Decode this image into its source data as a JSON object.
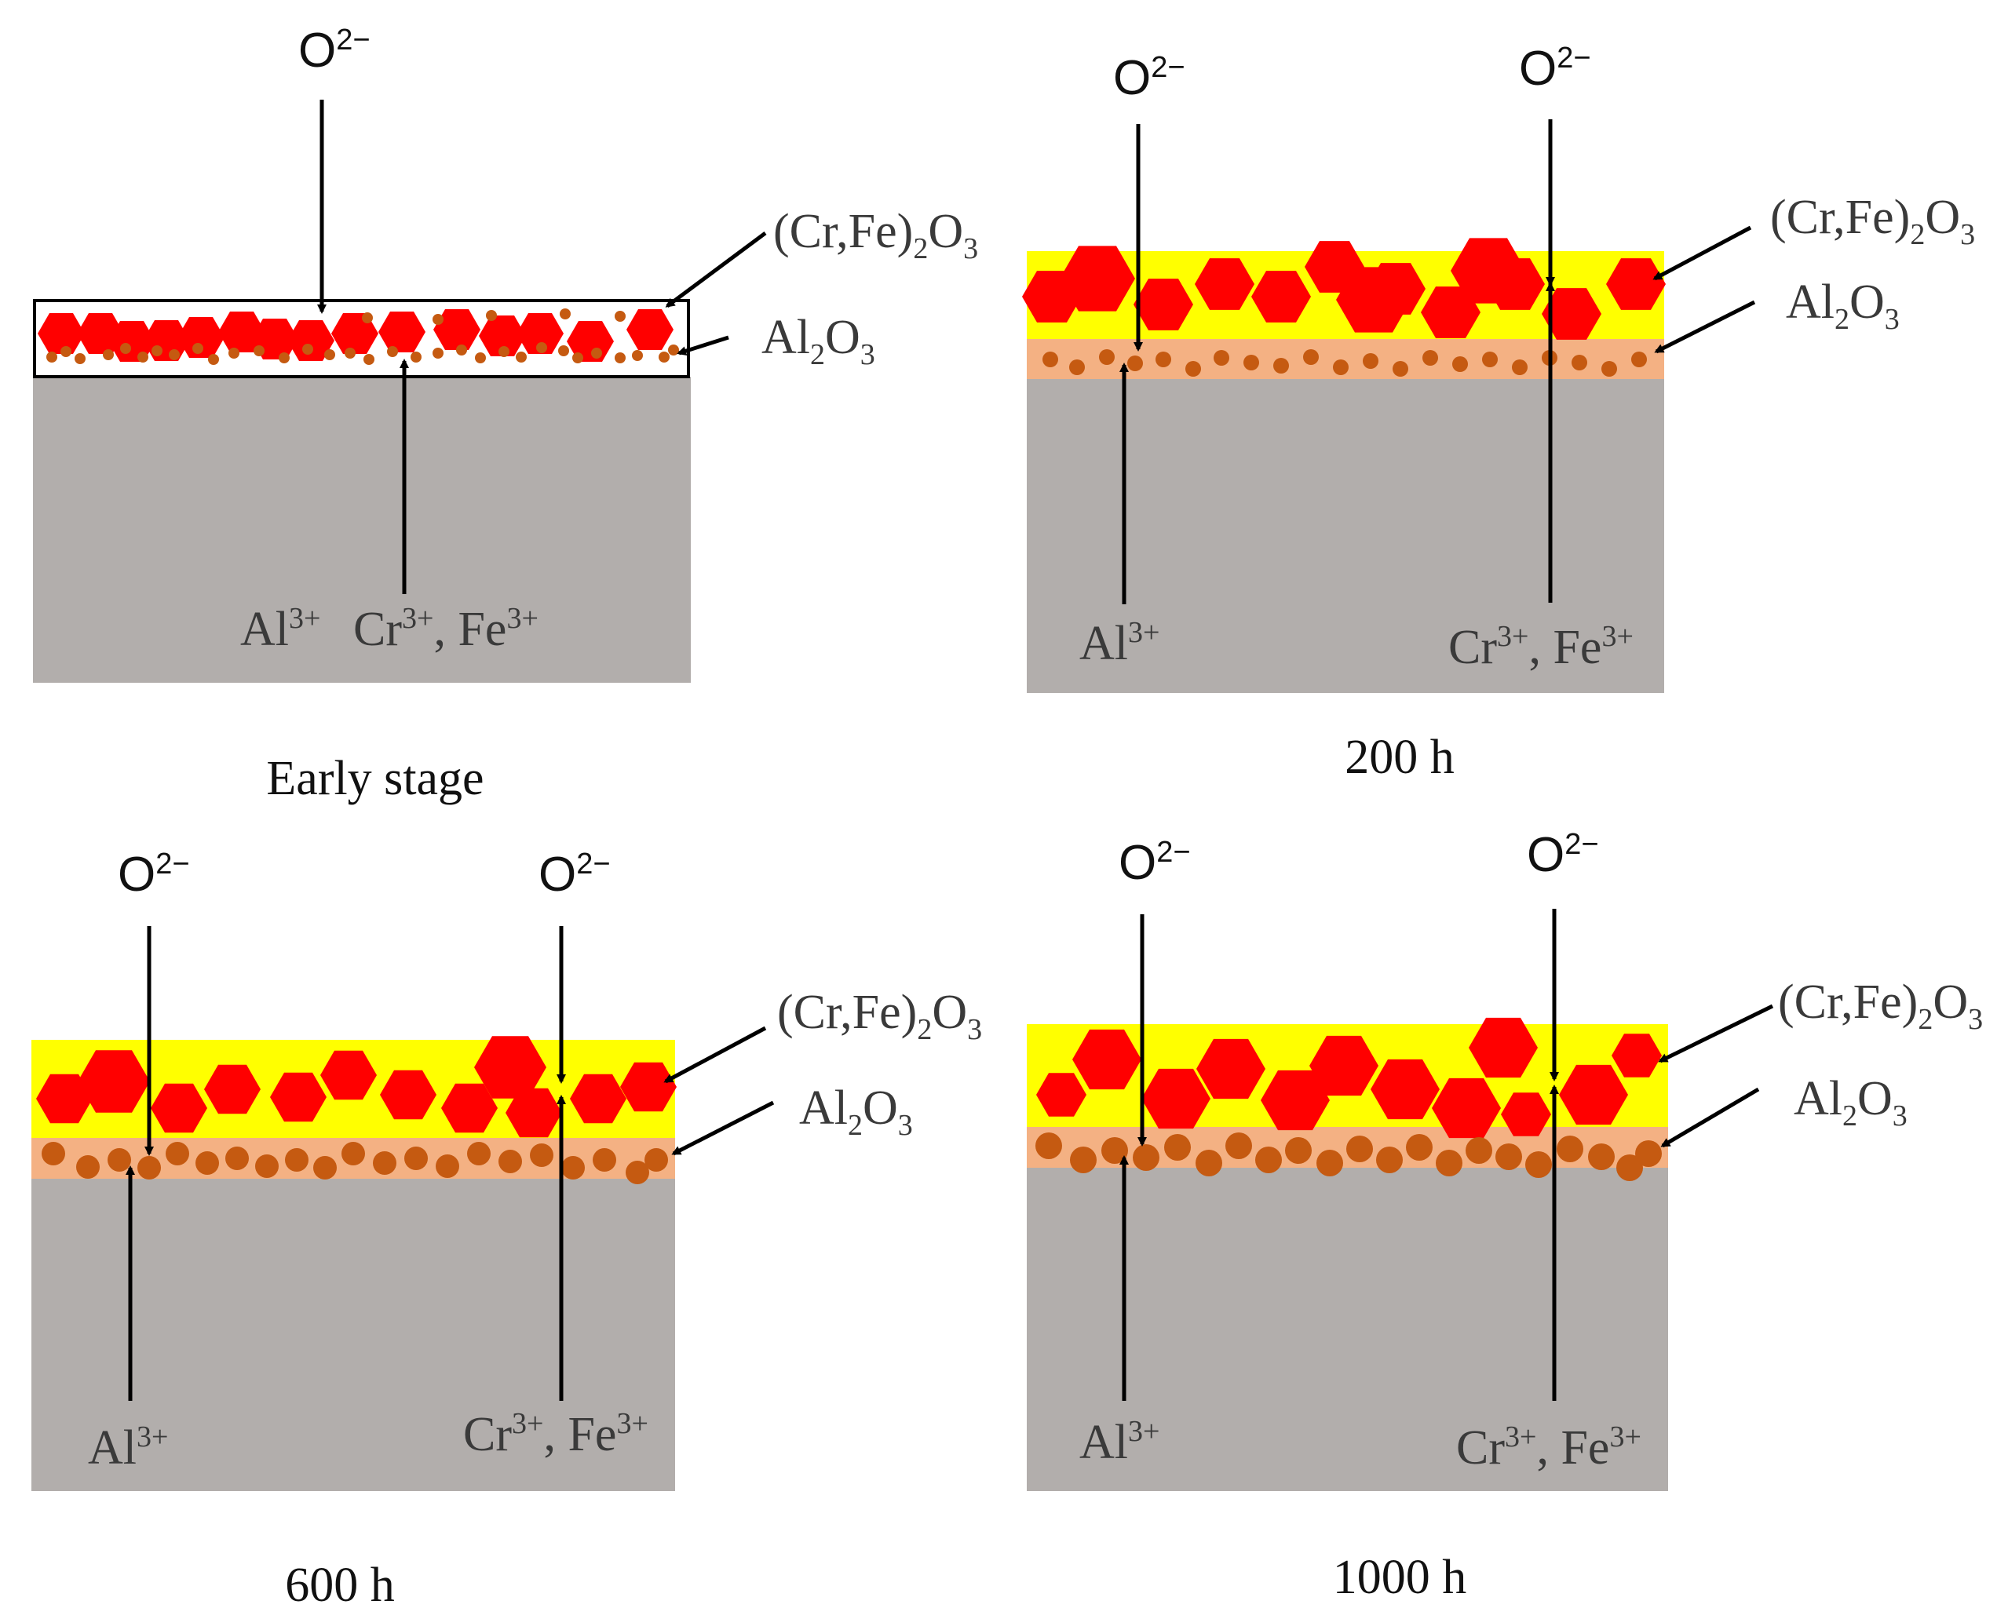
{
  "figure": {
    "colors": {
      "substrate": "#b2aeac",
      "chromia_layer": "#ffff00",
      "alumina_layer": "#f4b183",
      "hexagon": "#ff0000",
      "particle": "#c55a11",
      "arrow": "#000000",
      "text": "#3a3a3a"
    },
    "labels": {
      "oxygen": "O",
      "oxygen_sup": "2−",
      "chromia_pre": "(Cr,Fe)",
      "chromia_sub": "2",
      "chromia_mid": "O",
      "chromia_sub2": "3",
      "alumina_pre": "Al",
      "alumina_sub": "2",
      "alumina_mid": "O",
      "alumina_sub2": "3",
      "al_ion": "Al",
      "al_ion_sup": "3+",
      "cr_ion": "Cr",
      "cr_ion_sup": "3+",
      "fe_ion_sep": ", Fe",
      "fe_ion_sup": "3+"
    },
    "panels": [
      {
        "id": "early",
        "caption": "Early stage"
      },
      {
        "id": "200h",
        "caption": "200 h"
      },
      {
        "id": "600h",
        "caption": "600 h"
      },
      {
        "id": "1000h",
        "caption": "1000 h"
      }
    ]
  }
}
